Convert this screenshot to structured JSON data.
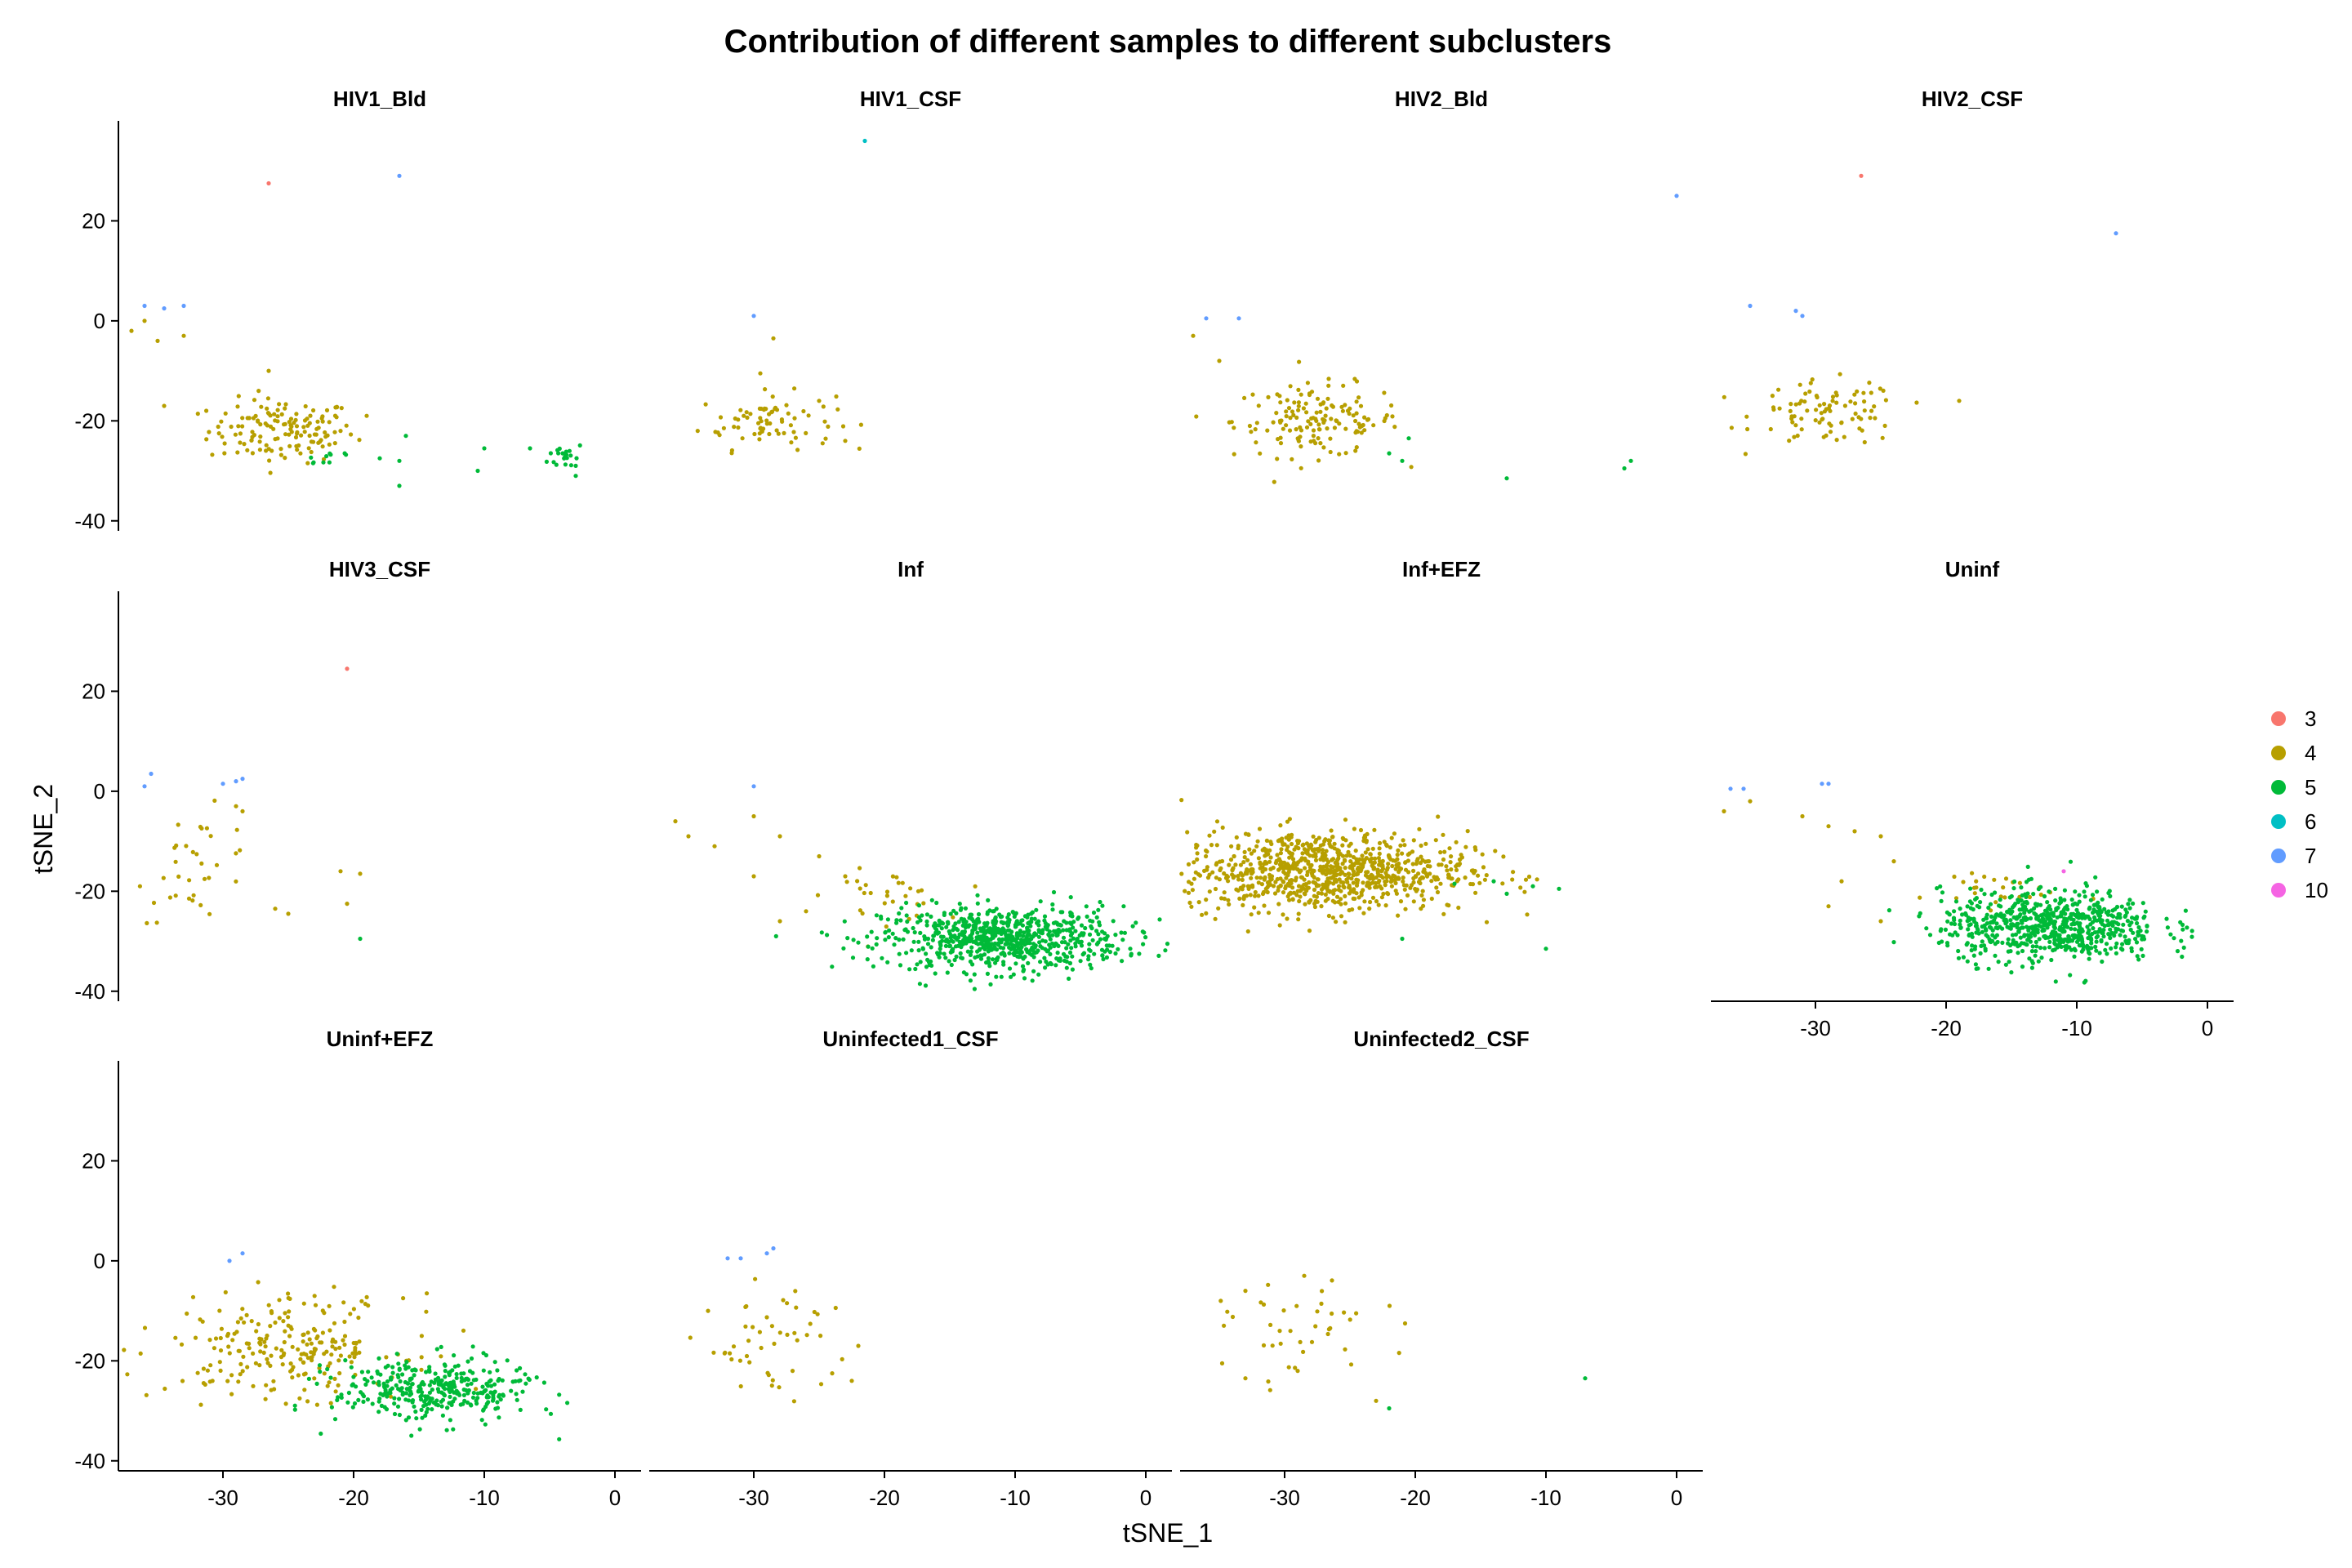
{
  "chart_data": {
    "type": "scatter",
    "title": "Contribution of different samples to different subclusters",
    "xlabel": "tSNE_1",
    "ylabel": "tSNE_2",
    "xlim": [
      -38,
      2
    ],
    "ylim": [
      -42,
      40
    ],
    "x_ticks": [
      -30,
      -20,
      -10,
      0
    ],
    "y_ticks": [
      20,
      0,
      -20,
      -40
    ],
    "grid": false,
    "legend_position": "right",
    "legend": [
      {
        "label": "3",
        "color": "#F8766D"
      },
      {
        "label": "4",
        "color": "#B79F00"
      },
      {
        "label": "5",
        "color": "#00BA38"
      },
      {
        "label": "6",
        "color": "#00BFC4"
      },
      {
        "label": "7",
        "color": "#619CFF"
      },
      {
        "label": "10",
        "color": "#F564E3"
      }
    ],
    "panels": [
      {
        "name": "HIV1_Bld",
        "points": [
          {
            "cluster": "3",
            "x": -26.5,
            "y": 27.5
          },
          {
            "cluster": "7",
            "x": -16.5,
            "y": 29
          },
          {
            "cluster": "7",
            "x": -36,
            "y": 3
          },
          {
            "cluster": "7",
            "x": -34.5,
            "y": 2.5
          },
          {
            "cluster": "7",
            "x": -33,
            "y": 3
          },
          {
            "cluster": "4",
            "x": -37,
            "y": -2
          },
          {
            "cluster": "4",
            "x": -36,
            "y": 0
          },
          {
            "cluster": "4",
            "x": -35,
            "y": -4
          },
          {
            "cluster": "4",
            "x": -33,
            "y": -3
          },
          {
            "cluster": "4",
            "x": -34.5,
            "y": -17
          },
          {
            "cluster": "4",
            "x": -26.5,
            "y": -10
          },
          {
            "cluster": "4",
            "x": -19,
            "y": -19
          },
          {
            "cluster": "4",
            "x": -21,
            "y": -22
          },
          {
            "cluster": "5",
            "x": -16,
            "y": -23
          },
          {
            "cluster": "5",
            "x": -16.5,
            "y": -28
          },
          {
            "cluster": "5",
            "x": -16.5,
            "y": -33
          },
          {
            "cluster": "5",
            "x": -18,
            "y": -27.5
          },
          {
            "cluster": "5",
            "x": -10,
            "y": -25.5
          },
          {
            "cluster": "5",
            "x": -10.5,
            "y": -30
          },
          {
            "cluster": "5",
            "x": -6.5,
            "y": -25.5
          },
          {
            "cluster": "5",
            "x": -4,
            "y": -26.5
          },
          {
            "cluster": "5",
            "x": -3,
            "y": -29
          },
          {
            "cluster": "5",
            "x": -3,
            "y": -31
          }
        ],
        "clusters": [
          {
            "cluster": "4",
            "n": 140,
            "cx": -25.5,
            "cy": -22,
            "sx": 2.8,
            "sy": 3.2
          },
          {
            "cluster": "5",
            "n": 10,
            "cx": -22,
            "cy": -27,
            "sx": 1.2,
            "sy": 1.2
          },
          {
            "cluster": "5",
            "n": 18,
            "cx": -3.7,
            "cy": -27,
            "sx": 0.7,
            "sy": 1.4
          }
        ]
      },
      {
        "name": "HIV1_CSF",
        "points": [
          {
            "cluster": "6",
            "x": -21.5,
            "y": 36
          },
          {
            "cluster": "7",
            "x": -30,
            "y": 1
          },
          {
            "cluster": "4",
            "x": -28.5,
            "y": -3.5
          },
          {
            "cluster": "4",
            "x": -29.5,
            "y": -10.5
          },
          {
            "cluster": "4",
            "x": -23,
            "y": -24
          },
          {
            "cluster": "4",
            "x": -25,
            "y": -16
          }
        ],
        "clusters": [
          {
            "cluster": "4",
            "n": 75,
            "cx": -29,
            "cy": -20,
            "sx": 2.6,
            "sy": 2.8
          }
        ]
      },
      {
        "name": "HIV2_Bld",
        "points": [
          {
            "cluster": "7",
            "x": 0,
            "y": 25
          },
          {
            "cluster": "7",
            "x": -36,
            "y": 0.5
          },
          {
            "cluster": "7",
            "x": -33.5,
            "y": 0.5
          },
          {
            "cluster": "4",
            "x": -37,
            "y": -3
          },
          {
            "cluster": "4",
            "x": -35,
            "y": -8
          },
          {
            "cluster": "5",
            "x": -21,
            "y": -28
          },
          {
            "cluster": "5",
            "x": -22,
            "y": -26.5
          },
          {
            "cluster": "5",
            "x": -13,
            "y": -31.5
          },
          {
            "cluster": "5",
            "x": -4,
            "y": -29.5
          },
          {
            "cluster": "5",
            "x": -3.5,
            "y": -28
          },
          {
            "cluster": "5",
            "x": -20.5,
            "y": -23.5
          }
        ],
        "clusters": [
          {
            "cluster": "4",
            "n": 150,
            "cx": -27.5,
            "cy": -20,
            "sx": 3.2,
            "sy": 3.6
          }
        ]
      },
      {
        "name": "HIV2_CSF",
        "points": [
          {
            "cluster": "3",
            "x": -26.5,
            "y": 29
          },
          {
            "cluster": "7",
            "x": -7,
            "y": 17.5
          },
          {
            "cluster": "7",
            "x": -35,
            "y": 3
          },
          {
            "cluster": "7",
            "x": -31.5,
            "y": 2
          },
          {
            "cluster": "7",
            "x": -31,
            "y": 1
          },
          {
            "cluster": "4",
            "x": -19,
            "y": -16
          }
        ],
        "clusters": [
          {
            "cluster": "4",
            "n": 90,
            "cx": -29,
            "cy": -18.5,
            "sx": 2.8,
            "sy": 3.2
          }
        ]
      },
      {
        "name": "HIV3_CSF",
        "points": [
          {
            "cluster": "3",
            "x": -20.5,
            "y": 24.5
          },
          {
            "cluster": "7",
            "x": -36,
            "y": 1
          },
          {
            "cluster": "7",
            "x": -35.5,
            "y": 3.5
          },
          {
            "cluster": "7",
            "x": -30,
            "y": 1.5
          },
          {
            "cluster": "7",
            "x": -29,
            "y": 2
          },
          {
            "cluster": "7",
            "x": -28.5,
            "y": 2.5
          },
          {
            "cluster": "5",
            "x": -19.5,
            "y": -29.5
          },
          {
            "cluster": "4",
            "x": -21,
            "y": -16
          },
          {
            "cluster": "4",
            "x": -19.5,
            "y": -16.5
          },
          {
            "cluster": "4",
            "x": -20.5,
            "y": -22.5
          },
          {
            "cluster": "4",
            "x": -26,
            "y": -23.5
          },
          {
            "cluster": "4",
            "x": -25,
            "y": -24.5
          },
          {
            "cluster": "4",
            "x": -28.5,
            "y": -4
          },
          {
            "cluster": "4",
            "x": -29,
            "y": -3
          }
        ],
        "clusters": [
          {
            "cluster": "4",
            "n": 34,
            "cx": -32,
            "cy": -15,
            "sx": 2.3,
            "sy": 5.5
          }
        ]
      },
      {
        "name": "Inf",
        "points": [
          {
            "cluster": "7",
            "x": -30,
            "y": 1
          },
          {
            "cluster": "4",
            "x": -36,
            "y": -6
          },
          {
            "cluster": "4",
            "x": -35,
            "y": -9
          },
          {
            "cluster": "4",
            "x": -33,
            "y": -11
          },
          {
            "cluster": "4",
            "x": -30,
            "y": -5
          },
          {
            "cluster": "4",
            "x": -28,
            "y": -9
          },
          {
            "cluster": "4",
            "x": -25,
            "y": -13
          },
          {
            "cluster": "4",
            "x": -30,
            "y": -17
          },
          {
            "cluster": "4",
            "x": -26,
            "y": -24
          },
          {
            "cluster": "4",
            "x": -28,
            "y": -26
          },
          {
            "cluster": "4",
            "x": -23,
            "y": -17
          }
        ],
        "clusters": [
          {
            "cluster": "4",
            "n": 30,
            "cx": -20,
            "cy": -21,
            "sx": 2.2,
            "sy": 2.5
          },
          {
            "cluster": "5",
            "n": 750,
            "cx": -11,
            "cy": -29.5,
            "sx": 4.6,
            "sy": 3.2
          }
        ]
      },
      {
        "name": "Inf+EFZ",
        "points": [
          {
            "cluster": "5",
            "x": -17,
            "y": -18.5
          },
          {
            "cluster": "5",
            "x": -14,
            "y": -18
          },
          {
            "cluster": "5",
            "x": -11,
            "y": -19
          },
          {
            "cluster": "5",
            "x": -9,
            "y": -19.5
          },
          {
            "cluster": "5",
            "x": -10,
            "y": -31.5
          },
          {
            "cluster": "5",
            "x": -13,
            "y": -20.5
          },
          {
            "cluster": "5",
            "x": -21,
            "y": -29.5
          }
        ],
        "clusters": [
          {
            "cluster": "4",
            "n": 900,
            "cx": -27,
            "cy": -16,
            "sx": 5.5,
            "sy": 4.0
          }
        ]
      },
      {
        "name": "Uninf",
        "show_x_axis": true,
        "points": [
          {
            "cluster": "7",
            "x": -36.5,
            "y": 0.5
          },
          {
            "cluster": "7",
            "x": -35.5,
            "y": 0.5
          },
          {
            "cluster": "7",
            "x": -29.5,
            "y": 1.5
          },
          {
            "cluster": "7",
            "x": -29,
            "y": 1.5
          },
          {
            "cluster": "10",
            "x": -11,
            "y": -16
          },
          {
            "cluster": "4",
            "x": -37,
            "y": -4
          },
          {
            "cluster": "4",
            "x": -35,
            "y": -2
          },
          {
            "cluster": "4",
            "x": -31,
            "y": -5
          },
          {
            "cluster": "4",
            "x": -29,
            "y": -7
          },
          {
            "cluster": "4",
            "x": -27,
            "y": -8
          },
          {
            "cluster": "4",
            "x": -25,
            "y": -9
          },
          {
            "cluster": "4",
            "x": -24,
            "y": -14
          },
          {
            "cluster": "4",
            "x": -28,
            "y": -18
          },
          {
            "cluster": "4",
            "x": -29,
            "y": -23
          },
          {
            "cluster": "4",
            "x": -25,
            "y": -26
          }
        ],
        "clusters": [
          {
            "cluster": "4",
            "n": 25,
            "cx": -17,
            "cy": -19.5,
            "sx": 2.5,
            "sy": 2
          },
          {
            "cluster": "5",
            "n": 700,
            "cx": -12,
            "cy": -27,
            "sx": 4.2,
            "sy": 3.6
          }
        ]
      },
      {
        "name": "Uninf+EFZ",
        "show_x_axis": true,
        "points": [
          {
            "cluster": "7",
            "x": -28.5,
            "y": 1.5
          },
          {
            "cluster": "7",
            "x": -29.5,
            "y": 0
          }
        ],
        "clusters": [
          {
            "cluster": "4",
            "n": 230,
            "cx": -25,
            "cy": -17,
            "sx": 4.5,
            "sy": 5
          },
          {
            "cluster": "5",
            "n": 350,
            "cx": -14,
            "cy": -26,
            "sx": 3.8,
            "sy": 3.2
          }
        ]
      },
      {
        "name": "Uninfected1_CSF",
        "show_x_axis": true,
        "points": [
          {
            "cluster": "7",
            "x": -32,
            "y": 0.5
          },
          {
            "cluster": "7",
            "x": -31,
            "y": 0.5
          },
          {
            "cluster": "7",
            "x": -29,
            "y": 1.5
          },
          {
            "cluster": "7",
            "x": -28.5,
            "y": 2.5
          },
          {
            "cluster": "4",
            "x": -33.5,
            "y": -10
          },
          {
            "cluster": "4",
            "x": -24,
            "y": -22.5
          },
          {
            "cluster": "4",
            "x": -22.5,
            "y": -24
          },
          {
            "cluster": "4",
            "x": -22,
            "y": -17
          }
        ],
        "clusters": [
          {
            "cluster": "4",
            "n": 45,
            "cx": -28.5,
            "cy": -16,
            "sx": 2.8,
            "sy": 5
          }
        ]
      },
      {
        "name": "Uninfected2_CSF",
        "show_x_axis": true,
        "points": [
          {
            "cluster": "5",
            "x": -7,
            "y": -23.5
          },
          {
            "cluster": "5",
            "x": -22,
            "y": -29.5
          },
          {
            "cluster": "4",
            "x": -28.5,
            "y": -3
          },
          {
            "cluster": "4",
            "x": -33,
            "y": -6
          },
          {
            "cluster": "4",
            "x": -33,
            "y": -23.5
          },
          {
            "cluster": "4",
            "x": -29,
            "y": -22
          },
          {
            "cluster": "4",
            "x": -23,
            "y": -28
          }
        ],
        "clusters": [
          {
            "cluster": "4",
            "n": 40,
            "cx": -28.5,
            "cy": -15,
            "sx": 3,
            "sy": 5
          }
        ]
      }
    ]
  }
}
